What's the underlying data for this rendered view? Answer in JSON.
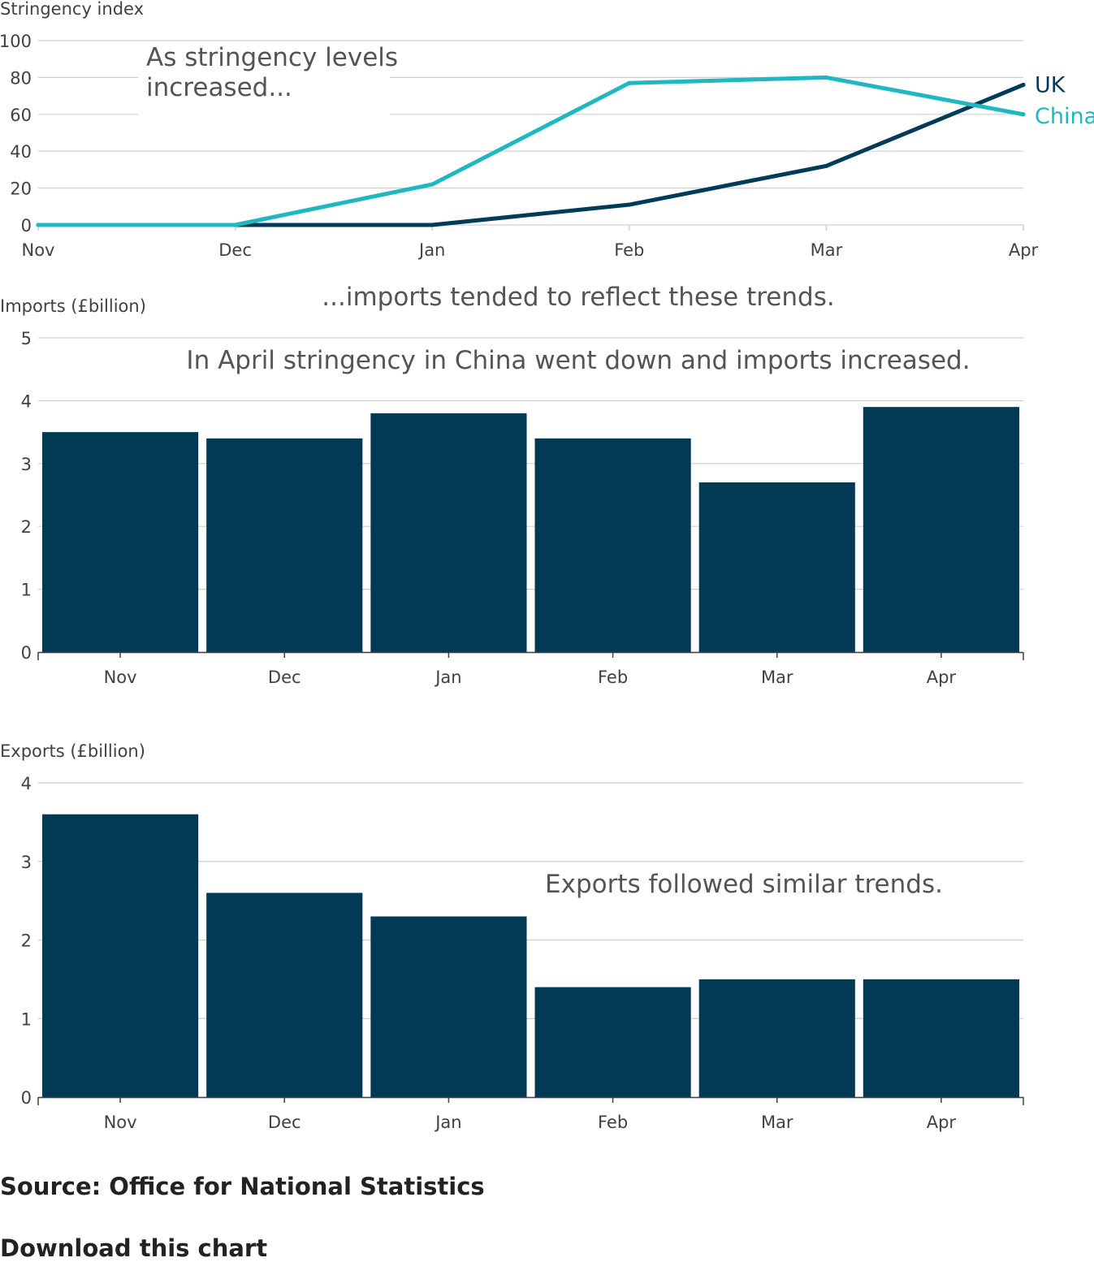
{
  "colors": {
    "uk": "#003c57",
    "china": "#1fb7c0",
    "bar": "#023a56",
    "grid": "#cfcfcf",
    "axis": "#414042",
    "annotation": "#545454"
  },
  "chart_data": [
    {
      "type": "line",
      "ylabel": "Stringency index",
      "xlabel": "",
      "categories": [
        "Nov",
        "Dec",
        "Jan",
        "Feb",
        "Mar",
        "Apr"
      ],
      "ylim": [
        0,
        100
      ],
      "yticks": [
        0,
        20,
        40,
        60,
        80,
        100
      ],
      "grid": true,
      "series": [
        {
          "name": "UK",
          "values": [
            0,
            0,
            0,
            11,
            32,
            76
          ]
        },
        {
          "name": "China",
          "values": [
            0,
            0,
            22,
            77,
            80,
            60
          ]
        }
      ],
      "annotations": [
        "As stringency levels",
        "increased..."
      ]
    },
    {
      "type": "bar",
      "ylabel": "Imports (£billion)",
      "xlabel": "",
      "categories": [
        "Nov",
        "Dec",
        "Jan",
        "Feb",
        "Mar",
        "Apr"
      ],
      "values": [
        3.5,
        3.4,
        3.8,
        3.4,
        2.7,
        3.9
      ],
      "ylim": [
        0,
        5
      ],
      "yticks": [
        0,
        1,
        2,
        3,
        4,
        5
      ],
      "grid": true,
      "annotations": [
        "...imports tended to reflect these trends.",
        "In April stringency in China went down and imports increased."
      ]
    },
    {
      "type": "bar",
      "ylabel": "Exports (£billion)",
      "xlabel": "",
      "categories": [
        "Nov",
        "Dec",
        "Jan",
        "Feb",
        "Mar",
        "Apr"
      ],
      "values": [
        3.6,
        2.6,
        2.3,
        1.4,
        1.5,
        1.5
      ],
      "ylim": [
        0,
        4
      ],
      "yticks": [
        0,
        1,
        2,
        3,
        4
      ],
      "grid": true,
      "annotations": [
        "Exports followed similar trends."
      ]
    }
  ],
  "footer": {
    "source": "Source: Office for National Statistics",
    "download": "Download this chart"
  }
}
